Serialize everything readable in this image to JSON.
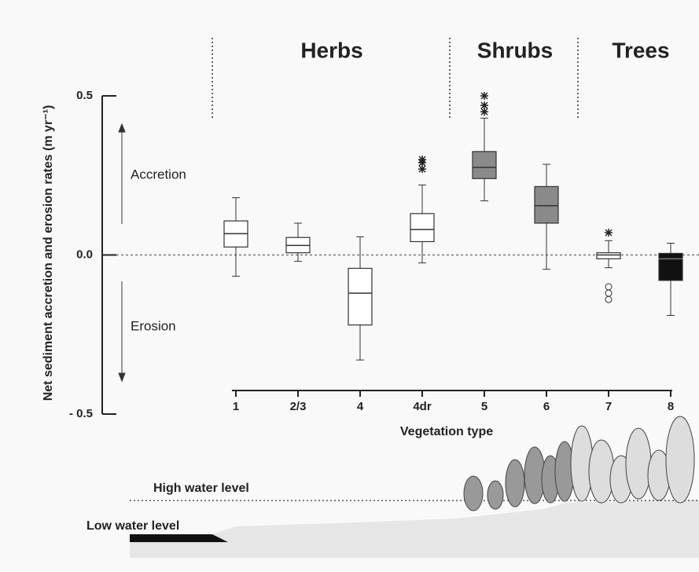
{
  "chart_data": {
    "type": "box",
    "y_label": "Net sediment accretion and erosion rates (m yr⁻¹)",
    "x_label": "Vegetation type",
    "categories": [
      "1",
      "2/3",
      "4",
      "4dr",
      "5",
      "6",
      "7",
      "8"
    ],
    "groups": [
      {
        "label": "Herbs"
      },
      {
        "label": "Shrubs"
      },
      {
        "label": "Trees"
      }
    ],
    "annotations": {
      "accretion": "Accretion",
      "erosion": "Erosion",
      "high_water": "High water level",
      "low_water": "Low water level"
    },
    "boxes": [
      {
        "min": -0.067,
        "q1": 0.025,
        "median": 0.067,
        "q3": 0.107,
        "max": 0.18,
        "color": "#ffffff",
        "outliers": []
      },
      {
        "min": -0.02,
        "q1": 0.007,
        "median": 0.03,
        "q3": 0.055,
        "max": 0.1,
        "color": "#ffffff",
        "outliers": []
      },
      {
        "min": -0.33,
        "q1": -0.22,
        "median": -0.12,
        "q3": -0.042,
        "max": 0.057,
        "color": "#ffffff",
        "outliers": []
      },
      {
        "min": -0.025,
        "q1": 0.042,
        "median": 0.08,
        "q3": 0.13,
        "max": 0.22,
        "color": "#ffffff",
        "outliers": [
          {
            "value": 0.27,
            "marker": "star"
          },
          {
            "value": 0.29,
            "marker": "star"
          },
          {
            "value": 0.3,
            "marker": "star"
          }
        ]
      },
      {
        "min": 0.17,
        "q1": 0.24,
        "median": 0.275,
        "q3": 0.325,
        "max": 0.43,
        "color": "#8a8a8a",
        "outliers": [
          {
            "value": 0.45,
            "marker": "star"
          },
          {
            "value": 0.47,
            "marker": "star"
          },
          {
            "value": 0.5,
            "marker": "star"
          }
        ]
      },
      {
        "min": -0.045,
        "q1": 0.1,
        "median": 0.155,
        "q3": 0.215,
        "max": 0.285,
        "color": "#8a8a8a",
        "outliers": []
      },
      {
        "min": -0.04,
        "q1": -0.012,
        "median": 0,
        "q3": 0.007,
        "max": 0.045,
        "color": "#ffffff",
        "outliers": [
          {
            "value": 0.07,
            "marker": "star"
          },
          {
            "value": -0.1,
            "marker": "circle"
          },
          {
            "value": -0.12,
            "marker": "circle"
          },
          {
            "value": -0.14,
            "marker": "circle"
          }
        ]
      },
      {
        "min": -0.19,
        "q1": -0.08,
        "median": -0.012,
        "q3": 0.005,
        "max": 0.037,
        "color": "#111111",
        "outliers": []
      }
    ],
    "ylim": [
      -0.5,
      0.5
    ],
    "yticks": [
      {
        "value": -0.5,
        "label": "- 0.5"
      },
      {
        "value": 0,
        "label": "0.0"
      },
      0.5
    ],
    "zero_line": true
  }
}
